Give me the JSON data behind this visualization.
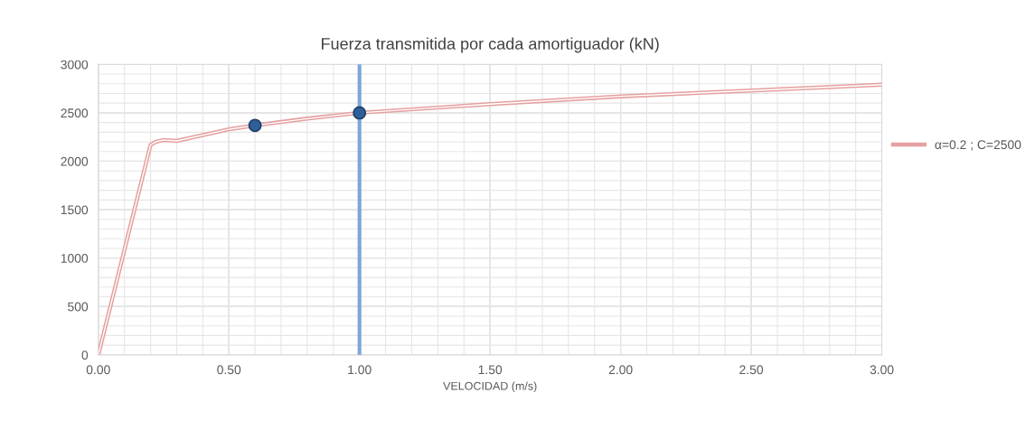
{
  "chart_data": {
    "type": "line",
    "title": "Fuerza transmitida por cada amortiguador (kN)",
    "xlabel": "VELOCIDAD (m/s)",
    "xlim": [
      0,
      3
    ],
    "ylim": [
      0,
      3000
    ],
    "xticks": [
      {
        "value": 0,
        "label": "0.00"
      },
      {
        "value": 0.1,
        "label": null
      },
      {
        "value": 0.2,
        "label": null
      },
      {
        "value": 0.3,
        "label": null
      },
      {
        "value": 0.4,
        "label": null
      },
      {
        "value": 0.5,
        "label": "0.50"
      },
      {
        "value": 0.6,
        "label": null
      },
      {
        "value": 0.7,
        "label": null
      },
      {
        "value": 0.8,
        "label": null
      },
      {
        "value": 0.9,
        "label": null
      },
      {
        "value": 1,
        "label": "1.00"
      },
      {
        "value": 1.1,
        "label": null
      },
      {
        "value": 1.2,
        "label": null
      },
      {
        "value": 1.3,
        "label": null
      },
      {
        "value": 1.4,
        "label": null
      },
      {
        "value": 1.5,
        "label": "1.50"
      },
      {
        "value": 1.6,
        "label": null
      },
      {
        "value": 1.7,
        "label": null
      },
      {
        "value": 1.8,
        "label": null
      },
      {
        "value": 1.9,
        "label": null
      },
      {
        "value": 2,
        "label": "2.00"
      },
      {
        "value": 2.1,
        "label": null
      },
      {
        "value": 2.2,
        "label": null
      },
      {
        "value": 2.3,
        "label": null
      },
      {
        "value": 2.4,
        "label": null
      },
      {
        "value": 2.5,
        "label": "2.50"
      },
      {
        "value": 2.6,
        "label": null
      },
      {
        "value": 2.7,
        "label": null
      },
      {
        "value": 2.8,
        "label": null
      },
      {
        "value": 2.9,
        "label": null
      },
      {
        "value": 3,
        "label": "3.00"
      }
    ],
    "yticks": [
      0,
      {
        "value": 100,
        "label": null
      },
      {
        "value": 200,
        "label": null
      },
      {
        "value": 300,
        "label": null
      },
      {
        "value": 400,
        "label": null
      },
      500,
      {
        "value": 600,
        "label": null
      },
      {
        "value": 700,
        "label": null
      },
      {
        "value": 800,
        "label": null
      },
      {
        "value": 900,
        "label": null
      },
      1000,
      {
        "value": 1100,
        "label": null
      },
      {
        "value": 1200,
        "label": null
      },
      {
        "value": 1300,
        "label": null
      },
      {
        "value": 1400,
        "label": null
      },
      1500,
      {
        "value": 1600,
        "label": null
      },
      {
        "value": 1700,
        "label": null
      },
      {
        "value": 1800,
        "label": null
      },
      {
        "value": 1900,
        "label": null
      },
      2000,
      {
        "value": 2100,
        "label": null
      },
      {
        "value": 2200,
        "label": null
      },
      {
        "value": 2300,
        "label": null
      },
      {
        "value": 2400,
        "label": null
      },
      2500,
      {
        "value": 2600,
        "label": null
      },
      {
        "value": 2700,
        "label": null
      },
      {
        "value": 2800,
        "label": null
      },
      {
        "value": 2900,
        "label": null
      },
      3000
    ],
    "grid": true,
    "legend": "right",
    "series": [
      {
        "name": "α=0.2 ; C=2500",
        "color": "#e6a0a0",
        "marker": "none",
        "x": [
          0,
          0.2,
          0.22,
          0.25,
          0.3,
          0.5,
          0.6,
          0.8,
          1,
          1.5,
          2,
          2.5,
          3
        ],
        "values": [
          0,
          2170,
          2200,
          2220,
          2210,
          2330,
          2370,
          2440,
          2500,
          2590,
          2670,
          2730,
          2790
        ]
      },
      {
        "color": "#2e5f9a",
        "type": "scatter",
        "marker": "circle",
        "x": [
          0.6,
          1
        ],
        "values": [
          2370,
          2500
        ]
      }
    ],
    "ref_lines": [
      {
        "axis": "x",
        "value": 1,
        "color": "#7fa6d6",
        "line_style": "solid"
      }
    ]
  }
}
